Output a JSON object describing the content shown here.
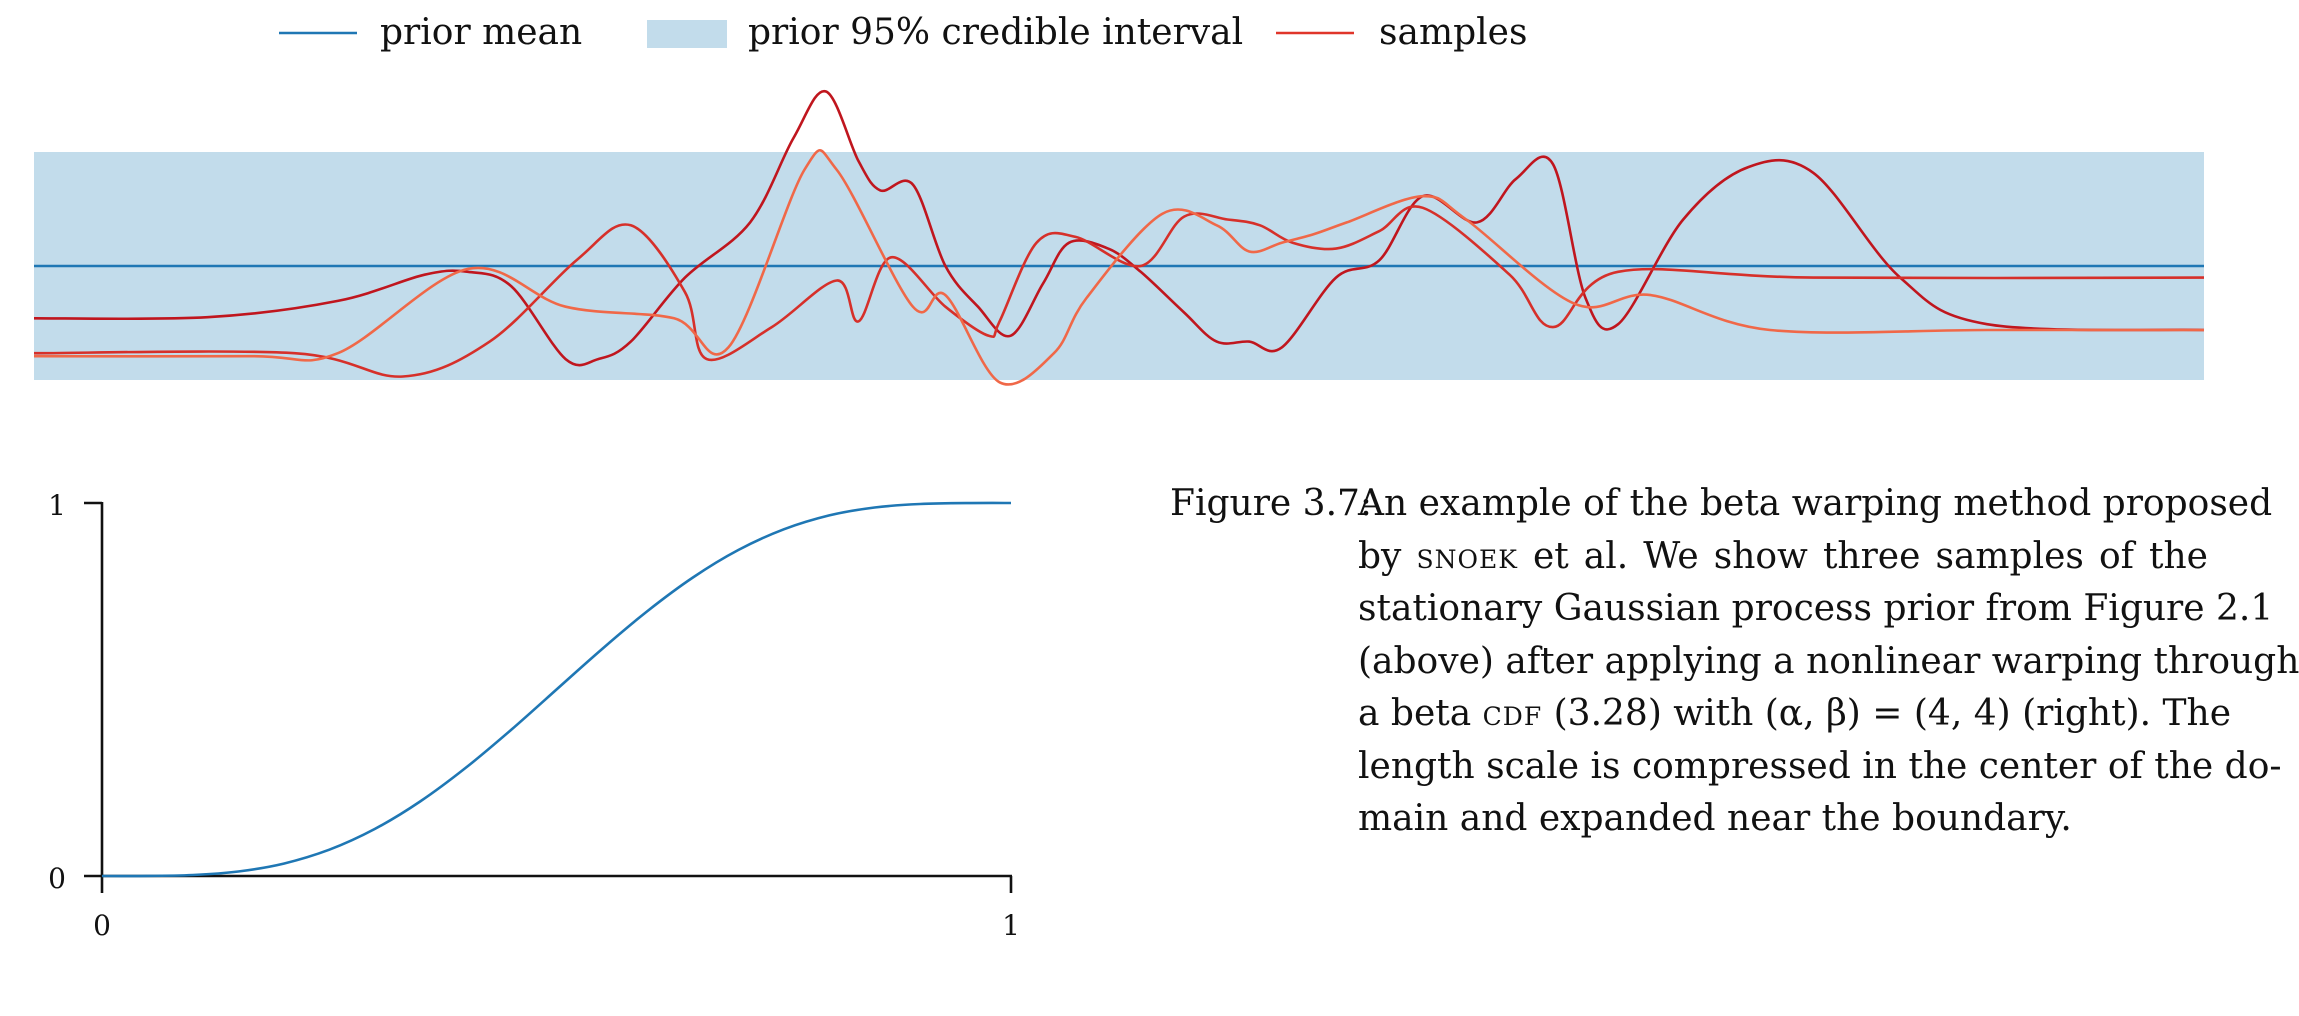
{
  "legend": {
    "mean_label": "prior mean",
    "interval_label": "prior 95% credible interval",
    "samples_label": "samples"
  },
  "colors": {
    "mean": "#1f77b4",
    "band": "#c2dceb",
    "sample_dark": "#c0161e",
    "sample_mid": "#d6302a",
    "sample_light": "#f06848",
    "axis": "#111111"
  },
  "caption": {
    "label": "Figure 3.7:",
    "lines": [
      [
        "An example of the beta warping method proposed"
      ],
      [
        "by ",
        {
          "sc": "Snoek"
        },
        " et al. We show three samples of the"
      ],
      [
        "stationary Gaussian process prior from Figure 2.1"
      ],
      [
        "(above) after applying a nonlinear warping through"
      ],
      [
        "a beta ",
        {
          "sc": "cdf"
        },
        " (3.28) with (α, β) = (4, 4) (right). The"
      ],
      [
        "length scale is compressed in the center of the do-"
      ],
      [
        "main and expanded near the boundary."
      ]
    ]
  },
  "chart_data": [
    {
      "type": "line",
      "title": "",
      "xlabel": "",
      "ylabel": "",
      "xlim": [
        0,
        1
      ],
      "ylim": [
        -2,
        2
      ],
      "grid": false,
      "legend": "top",
      "mean": 0,
      "interval": [
        -1.96,
        1.96
      ],
      "series": [
        {
          "name": "samples",
          "color": "#c0161e",
          "x": [
            0,
            0.08,
            0.14,
            0.18,
            0.2,
            0.22,
            0.245,
            0.26,
            0.275,
            0.3,
            0.33,
            0.35,
            0.365,
            0.38,
            0.39,
            0.405,
            0.42,
            0.435,
            0.45,
            0.465,
            0.477,
            0.495,
            0.51,
            0.53,
            0.545,
            0.56,
            0.575,
            0.6,
            0.62,
            0.64,
            0.665,
            0.683,
            0.7,
            0.715,
            0.73,
            0.76,
            0.79,
            0.82,
            0.86,
            0.9,
            1
          ],
          "y": [
            -0.9,
            -0.88,
            -0.6,
            -0.15,
            -0.1,
            -0.35,
            -1.6,
            -1.6,
            -1.3,
            -0.2,
            0.75,
            2.2,
            3.0,
            1.8,
            1.3,
            1.4,
            0.0,
            -0.7,
            -1.2,
            -0.3,
            0.4,
            0.3,
            -0.1,
            -0.8,
            -1.3,
            -1.3,
            -1.4,
            -0.2,
            0.1,
            1.2,
            0.75,
            1.5,
            1.75,
            -0.55,
            -1.0,
            0.8,
            1.7,
            1.6,
            -0.2,
            -1.0,
            -1.1
          ]
        },
        {
          "name": "samples",
          "color": "#d6302a",
          "x": [
            0,
            0.12,
            0.17,
            0.21,
            0.25,
            0.275,
            0.3,
            0.31,
            0.34,
            0.37,
            0.38,
            0.395,
            0.42,
            0.44,
            0.445,
            0.462,
            0.48,
            0.51,
            0.53,
            0.55,
            0.565,
            0.58,
            0.6,
            0.62,
            0.64,
            0.68,
            0.7,
            0.73,
            0.82,
            1
          ],
          "y": [
            -1.5,
            -1.5,
            -1.9,
            -1.3,
            0.1,
            0.7,
            -0.45,
            -1.6,
            -1.05,
            -0.25,
            -0.95,
            0.15,
            -0.7,
            -1.2,
            -0.95,
            0.4,
            0.5,
            0.0,
            0.85,
            0.8,
            0.7,
            0.4,
            0.3,
            0.6,
            1.0,
            -0.15,
            -1.05,
            -0.1,
            -0.2,
            -0.2
          ]
        },
        {
          "name": "samples",
          "color": "#f06848",
          "x": [
            0,
            0.1,
            0.14,
            0.2,
            0.245,
            0.295,
            0.32,
            0.355,
            0.37,
            0.405,
            0.42,
            0.445,
            0.47,
            0.485,
            0.52,
            0.545,
            0.56,
            0.575,
            0.59,
            0.605,
            0.64,
            0.66,
            0.71,
            0.745,
            0.8,
            0.9,
            1
          ],
          "y": [
            -1.55,
            -1.55,
            -1.5,
            -0.05,
            -0.7,
            -0.9,
            -1.4,
            1.65,
            1.65,
            -0.7,
            -0.5,
            -2.0,
            -1.5,
            -0.55,
            0.9,
            0.7,
            0.25,
            0.4,
            0.55,
            0.75,
            1.2,
            0.8,
            -0.65,
            -0.5,
            -1.1,
            -1.1,
            -1.1
          ]
        }
      ]
    },
    {
      "type": "line",
      "title": "",
      "xlabel": "",
      "ylabel": "",
      "xlim": [
        0,
        1
      ],
      "ylim": [
        0,
        1
      ],
      "xticks": [
        "0",
        "1"
      ],
      "yticks": [
        "0",
        "1"
      ],
      "grid": false,
      "function": "beta CDF, α = 4, β = 4",
      "series": [
        {
          "color": "#1f77b4",
          "x": [
            0,
            0.05,
            0.1,
            0.15,
            0.2,
            0.25,
            0.3,
            0.35,
            0.4,
            0.45,
            0.5,
            0.55,
            0.6,
            0.65,
            0.7,
            0.75,
            0.8,
            0.85,
            0.9,
            0.95,
            1
          ],
          "y": [
            0,
            0.0002,
            0.0027,
            0.0121,
            0.0333,
            0.0706,
            0.126,
            0.1998,
            0.2898,
            0.3917,
            0.5,
            0.6083,
            0.7102,
            0.8002,
            0.874,
            0.9294,
            0.9667,
            0.9879,
            0.9973,
            0.9998,
            1
          ]
        }
      ]
    }
  ]
}
